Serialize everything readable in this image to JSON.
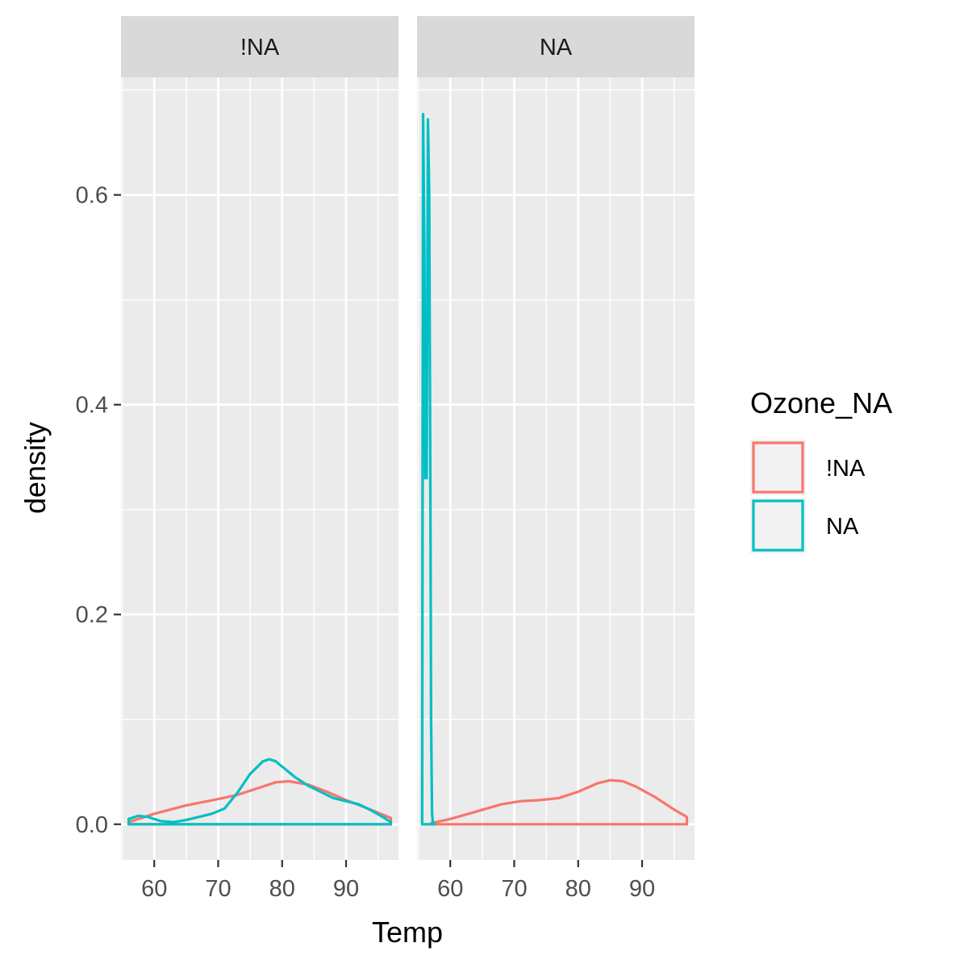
{
  "chart_data": {
    "type": "line",
    "subtype": "density",
    "xlabel": "Temp",
    "ylabel": "density",
    "xlim": [
      54.8,
      98.2
    ],
    "ylim": [
      -0.034,
      0.712
    ],
    "x_ticks": [
      60,
      70,
      80,
      90
    ],
    "y_ticks": [
      0.0,
      0.2,
      0.4,
      0.6
    ],
    "x_tick_labels": [
      "60",
      "70",
      "80",
      "90"
    ],
    "y_tick_labels": [
      "0.0",
      "0.2",
      "0.4",
      "0.6"
    ],
    "grid": true,
    "legend": {
      "title": "Ozone_NA",
      "position": "right",
      "entries": [
        {
          "label": "!NA",
          "color": "#F8766D"
        },
        {
          "label": "NA",
          "color": "#00BFC4"
        }
      ]
    },
    "panels": [
      {
        "strip": "!NA",
        "series": [
          {
            "name": "!NA",
            "color": "#F8766D",
            "x": [
              56,
              60,
              65,
              70,
              73,
              76,
              79,
              81,
              84,
              87,
              90,
              93,
              95,
              97
            ],
            "y": [
              0.002,
              0.01,
              0.018,
              0.024,
              0.028,
              0.034,
              0.04,
              0.041,
              0.038,
              0.031,
              0.023,
              0.016,
              0.011,
              0.006
            ]
          },
          {
            "name": "NA",
            "color": "#00BFC4",
            "x": [
              56,
              57.5,
              59,
              61,
              63,
              65,
              67,
              69,
              71,
              73,
              75,
              77,
              78,
              79,
              80,
              82,
              84,
              86,
              88,
              90,
              92,
              94,
              96,
              97
            ],
            "y": [
              0.005,
              0.008,
              0.007,
              0.003,
              0.002,
              0.004,
              0.007,
              0.01,
              0.015,
              0.03,
              0.048,
              0.06,
              0.062,
              0.06,
              0.055,
              0.045,
              0.037,
              0.031,
              0.025,
              0.022,
              0.019,
              0.013,
              0.006,
              0.002
            ]
          }
        ]
      },
      {
        "strip": "NA",
        "series": [
          {
            "name": "!NA",
            "color": "#F8766D",
            "x": [
              57,
              60,
              64,
              68,
              71,
              74,
              77,
              80,
              83,
              85,
              87,
              89,
              92,
              95,
              97
            ],
            "y": [
              0.001,
              0.005,
              0.012,
              0.019,
              0.022,
              0.023,
              0.025,
              0.031,
              0.039,
              0.042,
              0.041,
              0.036,
              0.026,
              0.014,
              0.007
            ]
          },
          {
            "name": "NA",
            "color": "#00BFC4",
            "x": [
              55.6,
              55.75,
              55.95,
              56.1,
              56.3,
              56.5,
              56.7,
              56.9,
              57.0,
              57.15,
              57.3,
              57.6
            ],
            "y": [
              0.0,
              0.677,
              0.55,
              0.33,
              0.33,
              0.672,
              0.6,
              0.3,
              0.1,
              0.01,
              0.0,
              0.0
            ]
          }
        ]
      }
    ]
  }
}
